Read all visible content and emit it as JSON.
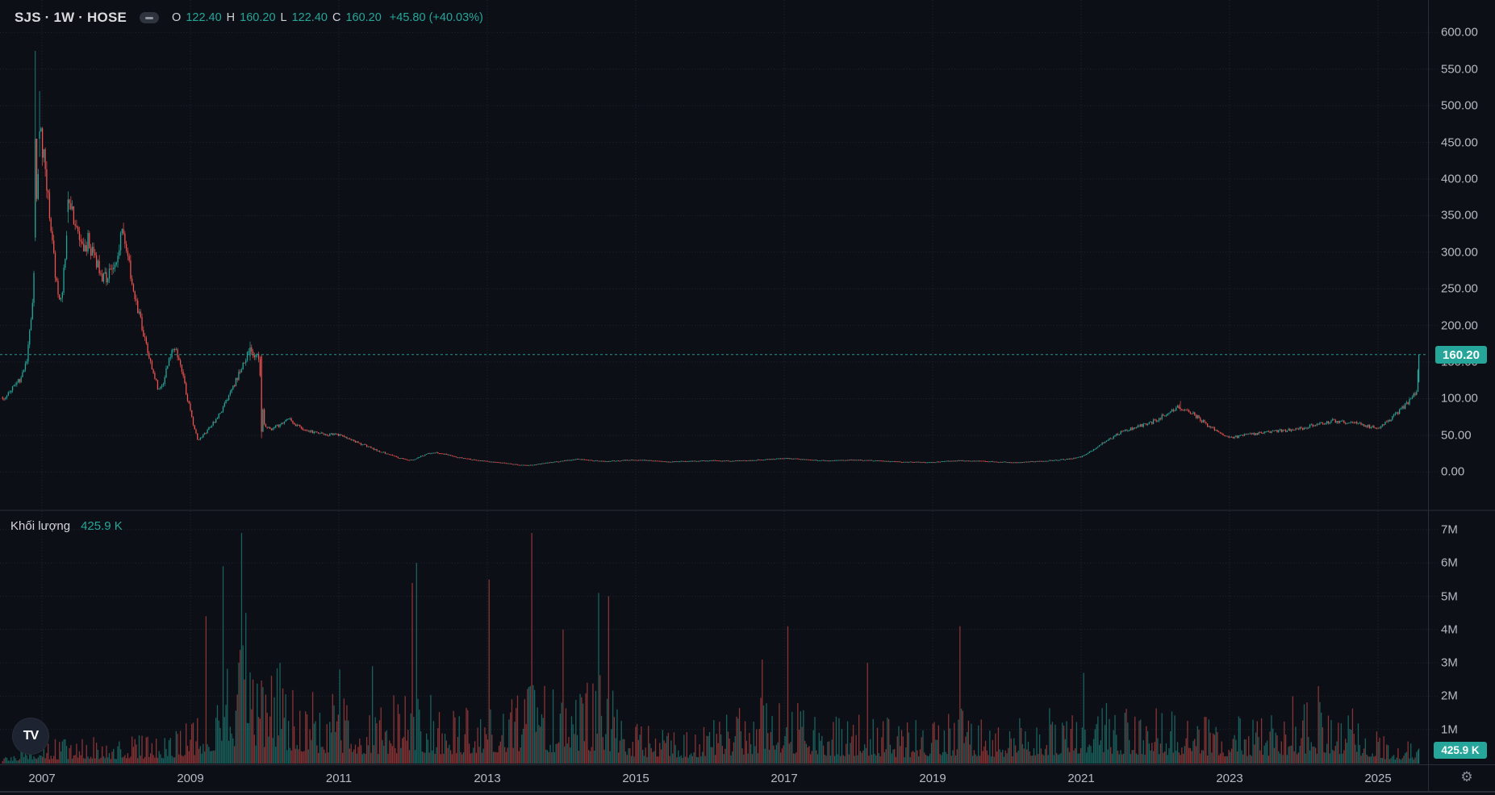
{
  "header": {
    "symbol_title": "SJS · 1W · HOSE",
    "ohlc": {
      "o_label": "O",
      "o": "122.40",
      "h_label": "H",
      "h": "160.20",
      "l_label": "L",
      "l": "122.40",
      "c_label": "C",
      "c": "160.20",
      "change": "+45.80 (+40.03%)"
    }
  },
  "volume_legend": {
    "label": "Khối lượng",
    "value": "425.9 K"
  },
  "price_axis": {
    "ticks": [
      "600.00",
      "550.00",
      "500.00",
      "450.00",
      "400.00",
      "350.00",
      "300.00",
      "250.00",
      "200.00",
      "150.00",
      "100.00",
      "50.00",
      "0.00"
    ],
    "tick_values": [
      600,
      550,
      500,
      450,
      400,
      350,
      300,
      250,
      200,
      150,
      100,
      50,
      0
    ],
    "current_badge": "160.20"
  },
  "volume_axis": {
    "ticks": [
      "7M",
      "6M",
      "5M",
      "4M",
      "3M",
      "2M",
      "1M"
    ],
    "tick_values": [
      7,
      6,
      5,
      4,
      3,
      2,
      1
    ],
    "current_badge": "425.9 K"
  },
  "time_axis": {
    "labels": [
      "2007",
      "2009",
      "2011",
      "2013",
      "2015",
      "2017",
      "2019",
      "2021",
      "2023",
      "2025"
    ],
    "label_years": [
      2007,
      2009,
      2011,
      2013,
      2015,
      2017,
      2019,
      2021,
      2023,
      2025
    ]
  },
  "colors": {
    "background": "#0c0f15",
    "grid": "#212631",
    "border": "#2a2e39",
    "up": "#26a69a",
    "down": "#ef5350",
    "accent": "#26a69a",
    "axis_text": "#b7bac2"
  },
  "branding": {
    "logo_text": "TV"
  },
  "icons": {
    "settings_gear": "⚙",
    "legend_minimize": "minus"
  },
  "chart_data": {
    "type": "candlestick",
    "symbol": "SJS",
    "interval": "1W",
    "exchange": "HOSE",
    "title": "SJS weekly candlesticks with volume, HOSE",
    "current_price": 160.2,
    "last_bar": {
      "open": 122.4,
      "high": 160.2,
      "low": 122.4,
      "close": 160.2,
      "change": 45.8,
      "change_pct": 40.03
    },
    "last_volume_shares": 425900,
    "x_domain_years": [
      2006.47,
      2025.55
    ],
    "price_axis_range": [
      0,
      600
    ],
    "volume_axis_top_m": 7,
    "grid": true,
    "legend_position": "top-left",
    "seed": 13,
    "price_anchors": [
      [
        2006.47,
        102
      ],
      [
        2006.56,
        108
      ],
      [
        2006.65,
        118
      ],
      [
        2006.74,
        132
      ],
      [
        2006.8,
        155
      ],
      [
        2006.86,
        210
      ],
      [
        2006.9,
        300
      ],
      [
        2006.94,
        380
      ],
      [
        2006.98,
        460
      ],
      [
        2007.02,
        430
      ],
      [
        2007.08,
        380
      ],
      [
        2007.14,
        310
      ],
      [
        2007.2,
        250
      ],
      [
        2007.26,
        235
      ],
      [
        2007.32,
        300
      ],
      [
        2007.38,
        370
      ],
      [
        2007.46,
        330
      ],
      [
        2007.54,
        305
      ],
      [
        2007.62,
        315
      ],
      [
        2007.72,
        290
      ],
      [
        2007.82,
        265
      ],
      [
        2007.92,
        272
      ],
      [
        2008.02,
        300
      ],
      [
        2008.08,
        330
      ],
      [
        2008.16,
        290
      ],
      [
        2008.26,
        235
      ],
      [
        2008.36,
        195
      ],
      [
        2008.46,
        150
      ],
      [
        2008.56,
        115
      ],
      [
        2008.64,
        125
      ],
      [
        2008.72,
        160
      ],
      [
        2008.8,
        172
      ],
      [
        2008.88,
        140
      ],
      [
        2008.96,
        100
      ],
      [
        2009.04,
        65
      ],
      [
        2009.1,
        42
      ],
      [
        2009.16,
        48
      ],
      [
        2009.24,
        58
      ],
      [
        2009.34,
        72
      ],
      [
        2009.44,
        88
      ],
      [
        2009.54,
        108
      ],
      [
        2009.64,
        132
      ],
      [
        2009.72,
        152
      ],
      [
        2009.8,
        168
      ],
      [
        2009.86,
        160
      ],
      [
        2009.92,
        158
      ],
      [
        2009.96,
        100
      ],
      [
        2010.0,
        62
      ],
      [
        2010.08,
        58
      ],
      [
        2010.16,
        62
      ],
      [
        2010.24,
        68
      ],
      [
        2010.32,
        74
      ],
      [
        2010.4,
        66
      ],
      [
        2010.5,
        60
      ],
      [
        2010.6,
        56
      ],
      [
        2010.72,
        53
      ],
      [
        2010.84,
        50
      ],
      [
        2010.95,
        52
      ],
      [
        2011.05,
        48
      ],
      [
        2011.15,
        44
      ],
      [
        2011.25,
        40
      ],
      [
        2011.35,
        36
      ],
      [
        2011.45,
        32
      ],
      [
        2011.55,
        28
      ],
      [
        2011.65,
        25
      ],
      [
        2011.75,
        21
      ],
      [
        2011.85,
        18
      ],
      [
        2011.95,
        16
      ],
      [
        2012.02,
        17
      ],
      [
        2012.1,
        21
      ],
      [
        2012.2,
        25
      ],
      [
        2012.3,
        27
      ],
      [
        2012.4,
        25
      ],
      [
        2012.5,
        23
      ],
      [
        2012.6,
        20
      ],
      [
        2012.72,
        18
      ],
      [
        2012.84,
        16
      ],
      [
        2012.95,
        15
      ],
      [
        2013.05,
        14
      ],
      [
        2013.15,
        13
      ],
      [
        2013.25,
        12
      ],
      [
        2013.35,
        10.5
      ],
      [
        2013.45,
        9.5
      ],
      [
        2013.55,
        9
      ],
      [
        2013.65,
        10
      ],
      [
        2013.78,
        12
      ],
      [
        2013.9,
        13.5
      ],
      [
        2014.02,
        15
      ],
      [
        2014.12,
        16.5
      ],
      [
        2014.22,
        17.5
      ],
      [
        2014.32,
        16.5
      ],
      [
        2014.45,
        15.5
      ],
      [
        2014.6,
        14.5
      ],
      [
        2014.75,
        15.5
      ],
      [
        2014.9,
        16
      ],
      [
        2015.05,
        16.5
      ],
      [
        2015.25,
        15
      ],
      [
        2015.45,
        14
      ],
      [
        2015.65,
        14.5
      ],
      [
        2015.85,
        15
      ],
      [
        2016.05,
        15.5
      ],
      [
        2016.25,
        15
      ],
      [
        2016.45,
        15.5
      ],
      [
        2016.65,
        16.5
      ],
      [
        2016.85,
        17.5
      ],
      [
        2017.0,
        18.5
      ],
      [
        2017.15,
        18
      ],
      [
        2017.3,
        17
      ],
      [
        2017.45,
        16
      ],
      [
        2017.6,
        15.5
      ],
      [
        2017.75,
        16
      ],
      [
        2017.9,
        16.5
      ],
      [
        2018.05,
        16
      ],
      [
        2018.2,
        15.5
      ],
      [
        2018.35,
        14.5
      ],
      [
        2018.55,
        14
      ],
      [
        2018.75,
        13.5
      ],
      [
        2018.95,
        13
      ],
      [
        2019.1,
        14
      ],
      [
        2019.25,
        15
      ],
      [
        2019.4,
        15.5
      ],
      [
        2019.55,
        15
      ],
      [
        2019.7,
        14.5
      ],
      [
        2019.85,
        14
      ],
      [
        2020.0,
        13.5
      ],
      [
        2020.15,
        13
      ],
      [
        2020.3,
        14
      ],
      [
        2020.5,
        15
      ],
      [
        2020.7,
        16.5
      ],
      [
        2020.85,
        18
      ],
      [
        2021.0,
        21
      ],
      [
        2021.1,
        26
      ],
      [
        2021.2,
        33
      ],
      [
        2021.3,
        40
      ],
      [
        2021.4,
        46
      ],
      [
        2021.5,
        52
      ],
      [
        2021.6,
        57
      ],
      [
        2021.7,
        60
      ],
      [
        2021.8,
        63
      ],
      [
        2021.9,
        66
      ],
      [
        2022.0,
        70
      ],
      [
        2022.1,
        76
      ],
      [
        2022.2,
        82
      ],
      [
        2022.3,
        88
      ],
      [
        2022.4,
        86
      ],
      [
        2022.5,
        80
      ],
      [
        2022.6,
        72
      ],
      [
        2022.7,
        64
      ],
      [
        2022.8,
        57
      ],
      [
        2022.9,
        50
      ],
      [
        2023.0,
        47
      ],
      [
        2023.1,
        48
      ],
      [
        2023.2,
        50
      ],
      [
        2023.35,
        52
      ],
      [
        2023.5,
        54
      ],
      [
        2023.65,
        56
      ],
      [
        2023.8,
        57
      ],
      [
        2023.95,
        59
      ],
      [
        2024.1,
        63
      ],
      [
        2024.25,
        67
      ],
      [
        2024.4,
        70
      ],
      [
        2024.55,
        68
      ],
      [
        2024.7,
        66
      ],
      [
        2024.85,
        63
      ],
      [
        2024.95,
        60
      ],
      [
        2025.05,
        63
      ],
      [
        2025.15,
        70
      ],
      [
        2025.25,
        80
      ],
      [
        2025.35,
        90
      ],
      [
        2025.45,
        100
      ],
      [
        2025.52,
        112
      ],
      [
        2025.55,
        160.2
      ]
    ],
    "forced_bars": [
      [
        2006.92,
        320,
        575,
        315,
        455
      ],
      [
        2006.96,
        455,
        520,
        430,
        465
      ],
      [
        2007.36,
        355,
        383,
        340,
        372
      ],
      [
        2009.8,
        158,
        178,
        152,
        170
      ],
      [
        2009.96,
        158,
        160,
        46,
        55
      ],
      [
        2022.33,
        88,
        97,
        83,
        86
      ],
      [
        2025.55,
        122.4,
        160.2,
        122.4,
        160.2
      ]
    ],
    "volume_profile_m": [
      [
        2006.47,
        0.18
      ],
      [
        2007.0,
        0.4
      ],
      [
        2007.5,
        0.42
      ],
      [
        2008.0,
        0.45
      ],
      [
        2008.6,
        0.5
      ],
      [
        2009.0,
        0.8
      ],
      [
        2009.3,
        1.4
      ],
      [
        2009.6,
        2.0
      ],
      [
        2009.9,
        1.8
      ],
      [
        2010.2,
        1.6
      ],
      [
        2010.6,
        1.2
      ],
      [
        2011.0,
        1.1
      ],
      [
        2011.5,
        0.95
      ],
      [
        2012.0,
        1.3
      ],
      [
        2012.5,
        0.9
      ],
      [
        2013.0,
        1.2
      ],
      [
        2013.6,
        1.4
      ],
      [
        2014.0,
        1.2
      ],
      [
        2014.6,
        1.5
      ],
      [
        2015.0,
        0.7
      ],
      [
        2015.5,
        0.55
      ],
      [
        2016.0,
        0.7
      ],
      [
        2016.7,
        1.1
      ],
      [
        2017.1,
        1.1
      ],
      [
        2017.6,
        0.75
      ],
      [
        2018.1,
        0.85
      ],
      [
        2018.6,
        0.65
      ],
      [
        2019.0,
        0.75
      ],
      [
        2019.4,
        0.9
      ],
      [
        2019.8,
        0.65
      ],
      [
        2020.3,
        0.85
      ],
      [
        2020.8,
        0.95
      ],
      [
        2021.1,
        1.2
      ],
      [
        2021.5,
        1.0
      ],
      [
        2022.0,
        0.95
      ],
      [
        2022.5,
        0.85
      ],
      [
        2023.0,
        0.75
      ],
      [
        2023.5,
        0.85
      ],
      [
        2024.0,
        1.0
      ],
      [
        2024.4,
        1.1
      ],
      [
        2024.8,
        0.8
      ],
      [
        2025.1,
        0.45
      ],
      [
        2025.3,
        0.35
      ],
      [
        2025.55,
        0.426
      ]
    ],
    "volume_spikes_m": [
      [
        2009.21,
        4.4
      ],
      [
        2009.45,
        5.9
      ],
      [
        2009.69,
        6.9
      ],
      [
        2009.74,
        4.5
      ],
      [
        2010.2,
        3.0
      ],
      [
        2011.02,
        2.8
      ],
      [
        2011.45,
        2.9
      ],
      [
        2011.98,
        5.4
      ],
      [
        2012.04,
        6.0
      ],
      [
        2013.02,
        5.5
      ],
      [
        2013.6,
        6.9
      ],
      [
        2014.03,
        4.0
      ],
      [
        2014.5,
        5.1
      ],
      [
        2014.63,
        5.0
      ],
      [
        2016.7,
        3.1
      ],
      [
        2017.05,
        4.1
      ],
      [
        2018.13,
        3.0
      ],
      [
        2019.36,
        4.1
      ],
      [
        2021.04,
        2.7
      ],
      [
        2023.85,
        2.0
      ],
      [
        2024.2,
        2.3
      ]
    ],
    "last_volume_m": 0.426
  }
}
